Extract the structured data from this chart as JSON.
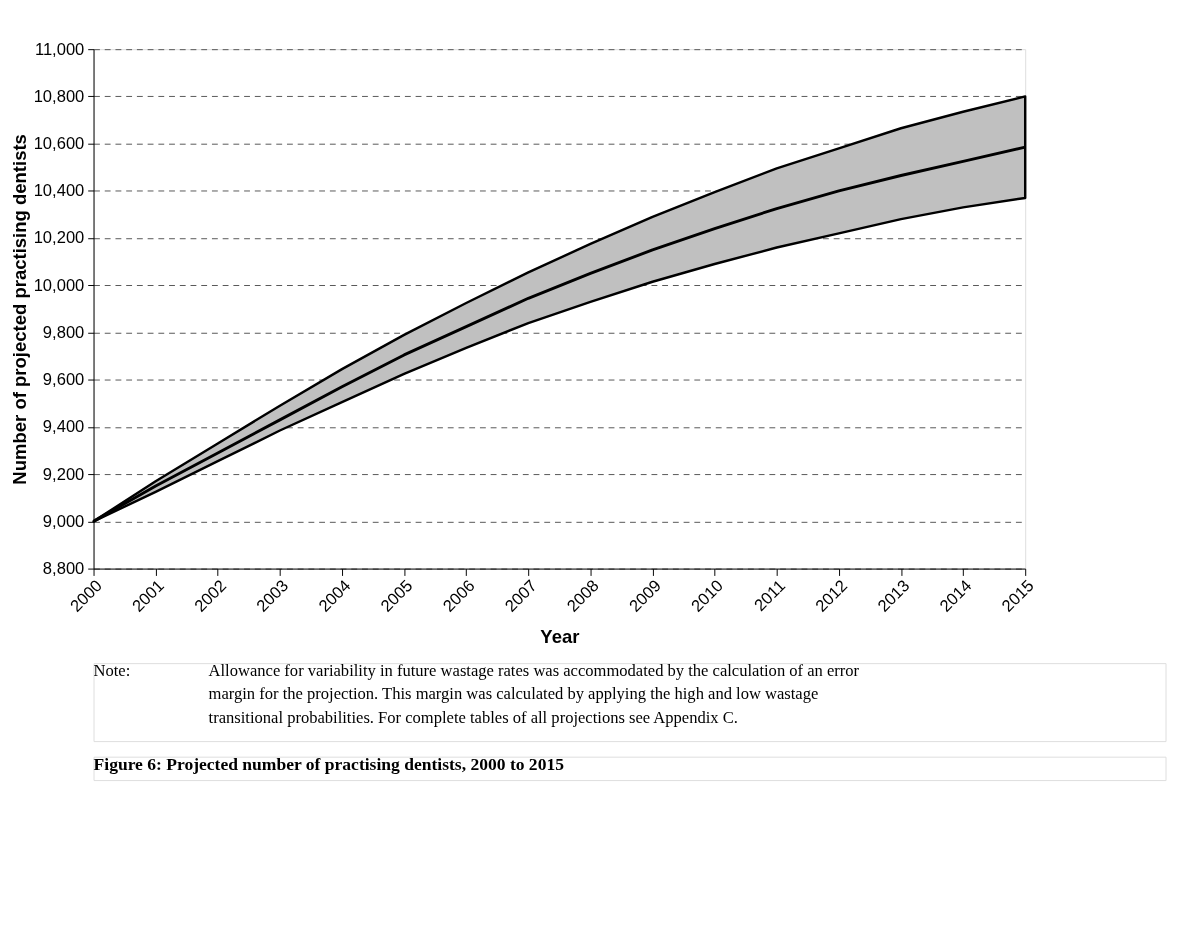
{
  "chart_data": {
    "type": "line",
    "title": "Figure 6:    Projected number of practising dentists, 2000 to 2015",
    "xlabel": "Year",
    "ylabel": "Number of projected practising dentists",
    "x": [
      2000,
      2001,
      2002,
      2003,
      2004,
      2005,
      2006,
      2007,
      2008,
      2009,
      2010,
      2011,
      2012,
      2013,
      2014,
      2015
    ],
    "series": [
      {
        "color": "#000000",
        "values": [
          9000,
          9150,
          9290,
          9430,
          9570,
          9705,
          9825,
          9945,
          10050,
          10150,
          10240,
          10325,
          10400,
          10465,
          10525,
          10585
        ],
        "lower": [
          9000,
          9125,
          9255,
          9385,
          9505,
          9625,
          9735,
          9840,
          9930,
          10015,
          10090,
          10160,
          10220,
          10280,
          10330,
          10370
        ],
        "upper": [
          9000,
          9170,
          9330,
          9490,
          9645,
          9790,
          9925,
          10055,
          10175,
          10290,
          10395,
          10495,
          10580,
          10665,
          10735,
          10800
        ]
      }
    ],
    "xlim": [
      2000,
      2015
    ],
    "xticks": [
      2000,
      2001,
      2002,
      2003,
      2004,
      2005,
      2006,
      2007,
      2008,
      2009,
      2010,
      2011,
      2012,
      2013,
      2014,
      2015
    ],
    "ylim": [
      8800,
      11000
    ],
    "yticks": [
      {
        "value": 8800,
        "label": "8,800"
      },
      {
        "value": 9000,
        "label": "9,000"
      },
      {
        "value": 9200,
        "label": "9,200"
      },
      {
        "value": 9400,
        "label": "9,400"
      },
      {
        "value": 9600,
        "label": "9,600"
      },
      {
        "value": 9800,
        "label": "9,800"
      },
      {
        "value": 10000,
        "label": "10,000"
      },
      {
        "value": 10200,
        "label": "10,200"
      },
      {
        "value": 10400,
        "label": "10,400"
      },
      {
        "value": 10600,
        "label": "10,600"
      },
      {
        "value": 10800,
        "label": "10,800"
      },
      {
        "value": 11000,
        "label": "11,000"
      }
    ],
    "grid": "y",
    "line_style": "solid",
    "annotations": [
      "Note:",
      "Allowance for variability in future wastage rates was accommodated by the calculation of an error margin for the projection. This margin was calculated by applying the high and low wastage transitional probabilities. For complete tables of all projections see Appendix C."
    ]
  }
}
